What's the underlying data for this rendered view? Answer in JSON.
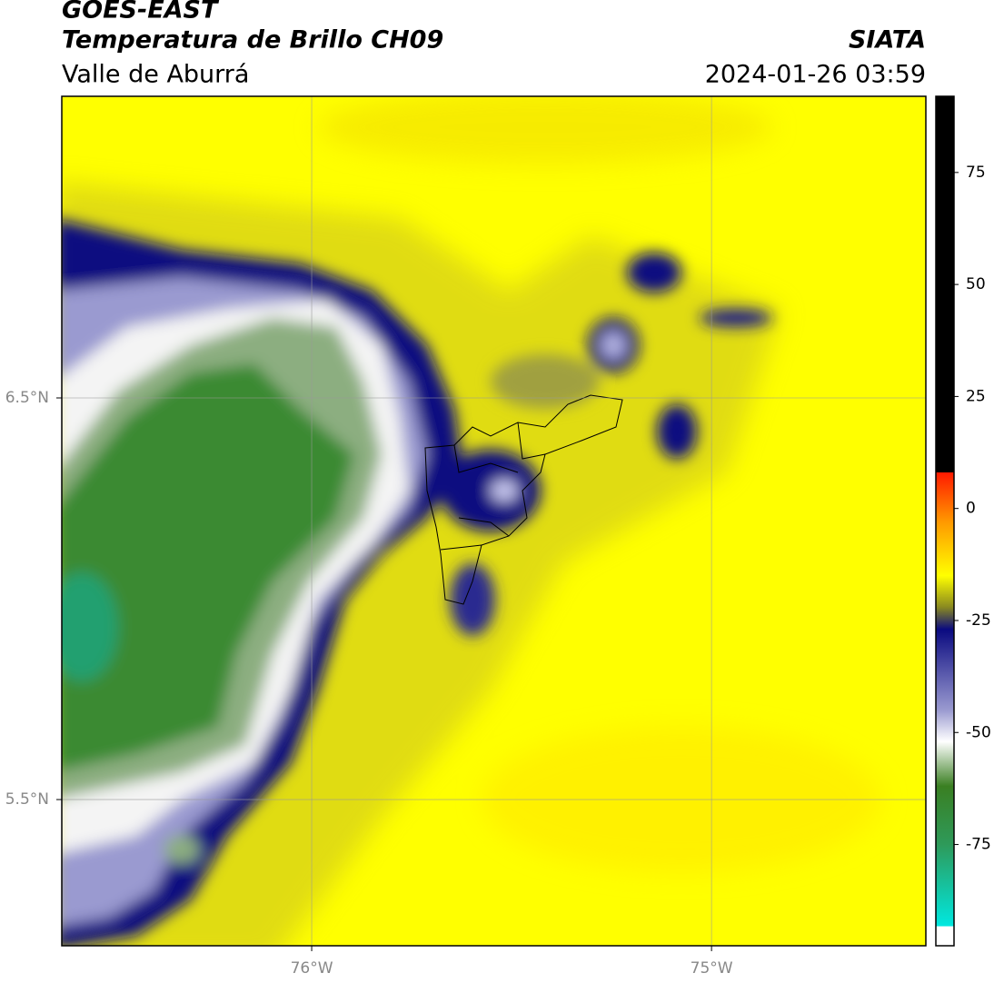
{
  "header": {
    "title": "GOES-EAST",
    "subtitle": "Temperatura de Brillo CH09",
    "region": "Valle de Aburrá",
    "source": "SIATA",
    "datetime": "2024-01-26 03:59"
  },
  "map": {
    "xlim": [
      -76.625,
      -74.464
    ],
    "ylim": [
      5.136,
      7.251
    ],
    "xticks": [
      {
        "value": -76,
        "label": "76°W"
      },
      {
        "value": -75,
        "label": "75°W"
      }
    ],
    "yticks": [
      {
        "value": 6.5,
        "label": "6.5°N"
      },
      {
        "value": 5.5,
        "label": "5.5°N"
      }
    ],
    "grid": true
  },
  "colorbar": {
    "range": [
      -97.6,
      92
    ],
    "ticks": [
      75,
      50,
      25,
      0,
      -25,
      -50,
      -75
    ],
    "stops": [
      {
        "value": -97.6,
        "color": "#ffffff"
      },
      {
        "value": -93.3,
        "color": "#ffffff"
      },
      {
        "value": -93.2,
        "color": "#00e8e0"
      },
      {
        "value": -75,
        "color": "#2e9a5a"
      },
      {
        "value": -62,
        "color": "#3a7f22"
      },
      {
        "value": -52,
        "color": "#ffffff"
      },
      {
        "value": -45,
        "color": "#9a9ad0"
      },
      {
        "value": -27,
        "color": "#0a0a80"
      },
      {
        "value": -22,
        "color": "#8a8a20"
      },
      {
        "value": -15,
        "color": "#ffff00"
      },
      {
        "value": -3,
        "color": "#ff9900"
      },
      {
        "value": 8,
        "color": "#ff1a00"
      },
      {
        "value": 8.1,
        "color": "#000000"
      },
      {
        "value": 92,
        "color": "#000000"
      }
    ]
  }
}
